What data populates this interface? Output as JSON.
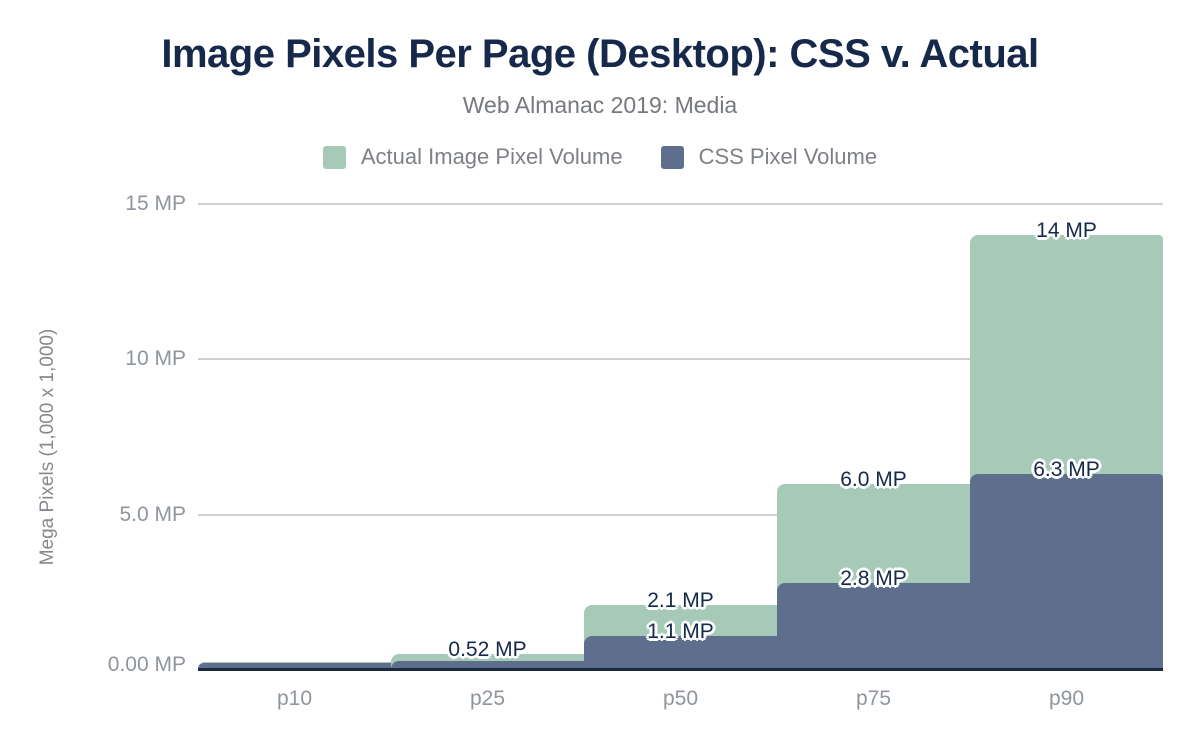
{
  "header": {
    "title": "Image Pixels Per Page (Desktop): CSS v. Actual",
    "subtitle": "Web Almanac 2019: Media"
  },
  "legend": {
    "items": [
      {
        "label": "Actual Image Pixel Volume",
        "color": "#a6c9b8"
      },
      {
        "label": "CSS Pixel Volume",
        "color": "#5d6f8c"
      }
    ]
  },
  "colors": {
    "actual_series": "#a6c9b8",
    "css_series": "#5d6f8c",
    "title_text": "#16294b",
    "subtitle_text": "#75797d",
    "axis_tick_text": "#8f959c",
    "gridline": "#cfcfcf",
    "baseline": "#1c2740",
    "data_label_text": "#152a4a",
    "background": "#ffffff"
  },
  "chart_data": {
    "type": "area",
    "variant": "stepped",
    "title": "Image Pixels Per Page (Desktop): CSS v. Actual",
    "subtitle": "Web Almanac 2019: Media",
    "categories": [
      "p10",
      "p25",
      "p50",
      "p75",
      "p90"
    ],
    "series": [
      {
        "name": "Actual Image Pixel Volume",
        "color": "#a6c9b8",
        "values": [
          0.1,
          0.52,
          2.1,
          6.0,
          14
        ],
        "labels": [
          "",
          "0.52 MP",
          "2.1 MP",
          "6.0 MP",
          "14 MP"
        ]
      },
      {
        "name": "CSS Pixel Volume",
        "color": "#5d6f8c",
        "values": [
          0.07,
          0.3,
          1.1,
          2.8,
          6.3
        ],
        "labels": [
          "",
          "",
          "1.1 MP",
          "2.8 MP",
          "6.3 MP"
        ]
      }
    ],
    "xlabel": "",
    "ylabel": "Mega Pixels (1,000 x 1,000)",
    "ylim": [
      0,
      15
    ],
    "yticks": [
      {
        "value": 0,
        "label": "0.00 MP"
      },
      {
        "value": 5,
        "label": "5.0 MP"
      },
      {
        "value": 10,
        "label": "10 MP"
      },
      {
        "value": 15,
        "label": "15 MP"
      }
    ],
    "grid": "horizontal",
    "legend_position": "top"
  }
}
